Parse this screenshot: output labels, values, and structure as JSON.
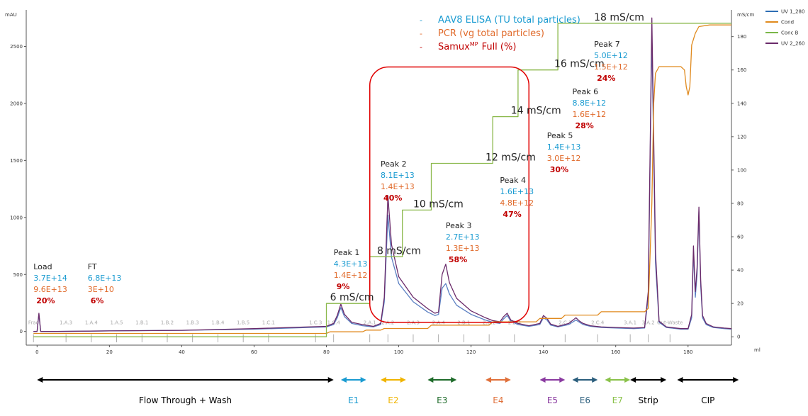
{
  "chart_data": {
    "type": "line",
    "left_axis_unit": "mAU",
    "right_axis_unit": "mS/cm",
    "x_unit": "ml",
    "xlim": [
      -3,
      192
    ],
    "ylim_left": [
      -120,
      2820
    ],
    "ylim_right": [
      -5,
      196
    ],
    "x_ticks": [
      0,
      20,
      40,
      60,
      80,
      100,
      120,
      140,
      160,
      180
    ],
    "y_ticks_left": [
      0,
      500,
      1000,
      1500,
      2000,
      2500
    ],
    "y_ticks_right": [
      0,
      20,
      40,
      60,
      80,
      100,
      120,
      140,
      160,
      180
    ],
    "legend": [
      {
        "name": "UV 1_280",
        "color": "#2e6db4"
      },
      {
        "name": "Cond",
        "color": "#e08a1e"
      },
      {
        "name": "Conc B",
        "color": "#7ab648"
      },
      {
        "name": "UV 2_260",
        "color": "#6a2a6a"
      }
    ],
    "key": [
      {
        "marker": "-",
        "text": "AAV8 ELISA (TU total particles)",
        "color": "#1a9bd1"
      },
      {
        "marker": "-",
        "text": "PCR (vg total particles)",
        "color": "#e06a2a"
      },
      {
        "marker": "-",
        "text": "Samux",
        "sup": "MP",
        "suffix": "Full (%)",
        "color": "#c00000"
      }
    ],
    "series": [
      {
        "name": "UV 1_280",
        "axis": "left",
        "color": "#5a7fc2",
        "x": [
          -1,
          0,
          0.5,
          1,
          5,
          20,
          40,
          60,
          75,
          80,
          82,
          83,
          84,
          85,
          87,
          90,
          93,
          95,
          96,
          97,
          98,
          100,
          104,
          108,
          110,
          111,
          112,
          113,
          114,
          116,
          120,
          124,
          126,
          128,
          129,
          130,
          131,
          133,
          136,
          139,
          140,
          141,
          142,
          144,
          147,
          149,
          150,
          151,
          153,
          156,
          160,
          165,
          168,
          169,
          170,
          171,
          172,
          174,
          178,
          180,
          181,
          181.5,
          182,
          182.5,
          183,
          183.5,
          184,
          185,
          187,
          190,
          192
        ],
        "y": [
          0,
          0,
          150,
          0,
          0,
          5,
          10,
          20,
          35,
          40,
          60,
          120,
          210,
          130,
          70,
          50,
          40,
          60,
          260,
          1020,
          650,
          420,
          260,
          170,
          140,
          150,
          380,
          420,
          330,
          230,
          150,
          100,
          80,
          70,
          110,
          140,
          90,
          60,
          45,
          60,
          120,
          100,
          55,
          40,
          60,
          100,
          80,
          60,
          45,
          35,
          30,
          25,
          30,
          300,
          2600,
          600,
          80,
          35,
          20,
          20,
          120,
          700,
          300,
          500,
          1050,
          400,
          120,
          60,
          35,
          25,
          20
        ]
      },
      {
        "name": "UV 2_260",
        "axis": "left",
        "color": "#6a2a6a",
        "x": [
          -1,
          0,
          0.5,
          1,
          5,
          20,
          40,
          60,
          75,
          80,
          82,
          83,
          84,
          85,
          87,
          90,
          93,
          95,
          96,
          97,
          98,
          100,
          104,
          108,
          110,
          111,
          112,
          113,
          114,
          116,
          120,
          124,
          126,
          128,
          129,
          130,
          131,
          133,
          136,
          139,
          140,
          141,
          142,
          144,
          147,
          149,
          150,
          151,
          153,
          156,
          160,
          165,
          168,
          169,
          170,
          171,
          172,
          174,
          178,
          180,
          181,
          181.5,
          182,
          182.5,
          183,
          183.5,
          184,
          185,
          187,
          190,
          192
        ],
        "y": [
          0,
          0,
          160,
          0,
          0,
          5,
          10,
          25,
          40,
          45,
          70,
          140,
          240,
          150,
          80,
          60,
          45,
          70,
          300,
          1190,
          760,
          480,
          300,
          200,
          160,
          170,
          500,
          590,
          430,
          290,
          180,
          120,
          95,
          85,
          130,
          160,
          100,
          70,
          50,
          70,
          140,
          115,
          65,
          45,
          70,
          120,
          90,
          70,
          50,
          40,
          35,
          30,
          35,
          350,
          2750,
          700,
          90,
          40,
          25,
          25,
          150,
          750,
          350,
          560,
          1090,
          450,
          140,
          70,
          40,
          30,
          25
        ]
      },
      {
        "name": "Cond",
        "axis": "right",
        "color": "#e08a1e",
        "x": [
          -1,
          1,
          20,
          60,
          80,
          81,
          90,
          91,
          95,
          96,
          100,
          108,
          109,
          120,
          125,
          126,
          135,
          138,
          139,
          145,
          146,
          152,
          155,
          156,
          168,
          169,
          170,
          170.5,
          171,
          172,
          178,
          179,
          179.5,
          180,
          180.5,
          181,
          182,
          183,
          186,
          192
        ],
        "y": [
          2,
          2,
          2,
          2,
          2,
          3,
          3,
          4,
          4,
          5,
          5,
          5,
          7,
          7,
          7,
          9,
          9,
          9,
          11,
          11,
          13,
          13,
          13,
          15,
          15,
          17,
          80,
          140,
          158,
          162,
          162,
          160,
          150,
          145,
          150,
          175,
          182,
          186,
          187,
          187
        ]
      },
      {
        "name": "Conc B",
        "axis": "right",
        "color": "#8ab84a",
        "x": [
          -1,
          80,
          80,
          92,
          92,
          101,
          101,
          109,
          109,
          126,
          126,
          133,
          133,
          144,
          144,
          155,
          155,
          192
        ],
        "y": [
          0,
          0,
          20,
          20,
          48,
          48,
          76,
          76,
          104,
          104,
          132,
          132,
          160,
          160,
          188,
          188,
          188,
          188
        ]
      }
    ],
    "step_labels": [
      "6 mS/cm",
      "8 mS/cm",
      "10 mS/cm",
      "12 mS/cm",
      "14 mS/cm",
      "16 mS/cm",
      "18 mS/cm"
    ],
    "peaks": [
      {
        "name": "Load",
        "elisa": "3.7E+14",
        "pcr": "9.6E+13",
        "full": "20%"
      },
      {
        "name": "FT",
        "elisa": "6.8E+13",
        "pcr": "3E+10",
        "full": "6%"
      },
      {
        "name": "Peak 1",
        "elisa": "4.3E+13",
        "pcr": "1.4E+12",
        "full": "9%"
      },
      {
        "name": "Peak 2",
        "elisa": "8.1E+13",
        "pcr": "1.4E+13",
        "full": "40%"
      },
      {
        "name": "Peak 3",
        "elisa": "2.7E+13",
        "pcr": "1.3E+13",
        "full": "58%"
      },
      {
        "name": "Peak 4",
        "elisa": "1.6E+13",
        "pcr": "4.8E+12",
        "full": "47%"
      },
      {
        "name": "Peak 5",
        "elisa": "1.4E+13",
        "pcr": "3.0E+12",
        "full": "30%"
      },
      {
        "name": "Peak 6",
        "elisa": "8.8E+12",
        "pcr": "1.6E+12",
        "full": "28%"
      },
      {
        "name": "Peak 7",
        "elisa": "5.0E+12",
        "pcr": "1.5E+12",
        "full": "24%"
      }
    ],
    "fractions": [
      {
        "label": "Frac",
        "x": -1
      },
      {
        "label": "1.A.3",
        "x": 8
      },
      {
        "label": "1.A.4",
        "x": 15
      },
      {
        "label": "1.A.5",
        "x": 22
      },
      {
        "label": "1.B.1",
        "x": 29
      },
      {
        "label": "1.B.2",
        "x": 36
      },
      {
        "label": "1.B.3",
        "x": 43
      },
      {
        "label": "1.B.4",
        "x": 50
      },
      {
        "label": "1.B.5",
        "x": 57
      },
      {
        "label": "1.C.1",
        "x": 64
      },
      {
        "label": "1.C.3",
        "x": 77
      },
      {
        "label": "1.C.4",
        "x": 82
      },
      {
        "label": "2.A.1",
        "x": 92
      },
      {
        "label": "2.A.2",
        "x": 97
      },
      {
        "label": "2.A.3",
        "x": 104
      },
      {
        "label": "2.A.4",
        "x": 111
      },
      {
        "label": "2.B.1",
        "x": 118
      },
      {
        "label": "2.B.2",
        "x": 125
      },
      {
        "label": "2.B.3",
        "x": 132
      },
      {
        "label": "2.C.1",
        "x": 146
      },
      {
        "label": "2.C.4",
        "x": 155
      },
      {
        "label": "3.A.1",
        "x": 164
      },
      {
        "label": "3.A.2",
        "x": 169
      },
      {
        "label": "Out-Waste",
        "x": 175
      }
    ],
    "stages": [
      {
        "label": "Flow Through + Wash",
        "color": "#000000",
        "x1": 0,
        "x2": 82
      },
      {
        "label": "E1",
        "color": "#1a9bd1",
        "x1": 84,
        "x2": 91
      },
      {
        "label": "E2",
        "color": "#f0b400",
        "x1": 95,
        "x2": 102
      },
      {
        "label": "E3",
        "color": "#1e6b2a",
        "x1": 108,
        "x2": 116
      },
      {
        "label": "E4",
        "color": "#e0703a",
        "x1": 124,
        "x2": 131
      },
      {
        "label": "E5",
        "color": "#8a3aa0",
        "x1": 139,
        "x2": 146
      },
      {
        "label": "E6",
        "color": "#2a5d7c",
        "x1": 148,
        "x2": 155
      },
      {
        "label": "E7",
        "color": "#8ac24a",
        "x1": 157,
        "x2": 164
      },
      {
        "label": "Strip",
        "color": "#000000",
        "x1": 164,
        "x2": 174
      },
      {
        "label": "CIP",
        "color": "#000000",
        "x1": 177,
        "x2": 194
      }
    ],
    "highlight_region": {
      "x_from": 92,
      "x_to": 136,
      "y_from_left": 80,
      "y_to_left": 2320,
      "color": "#e00000"
    },
    "grid": false
  }
}
